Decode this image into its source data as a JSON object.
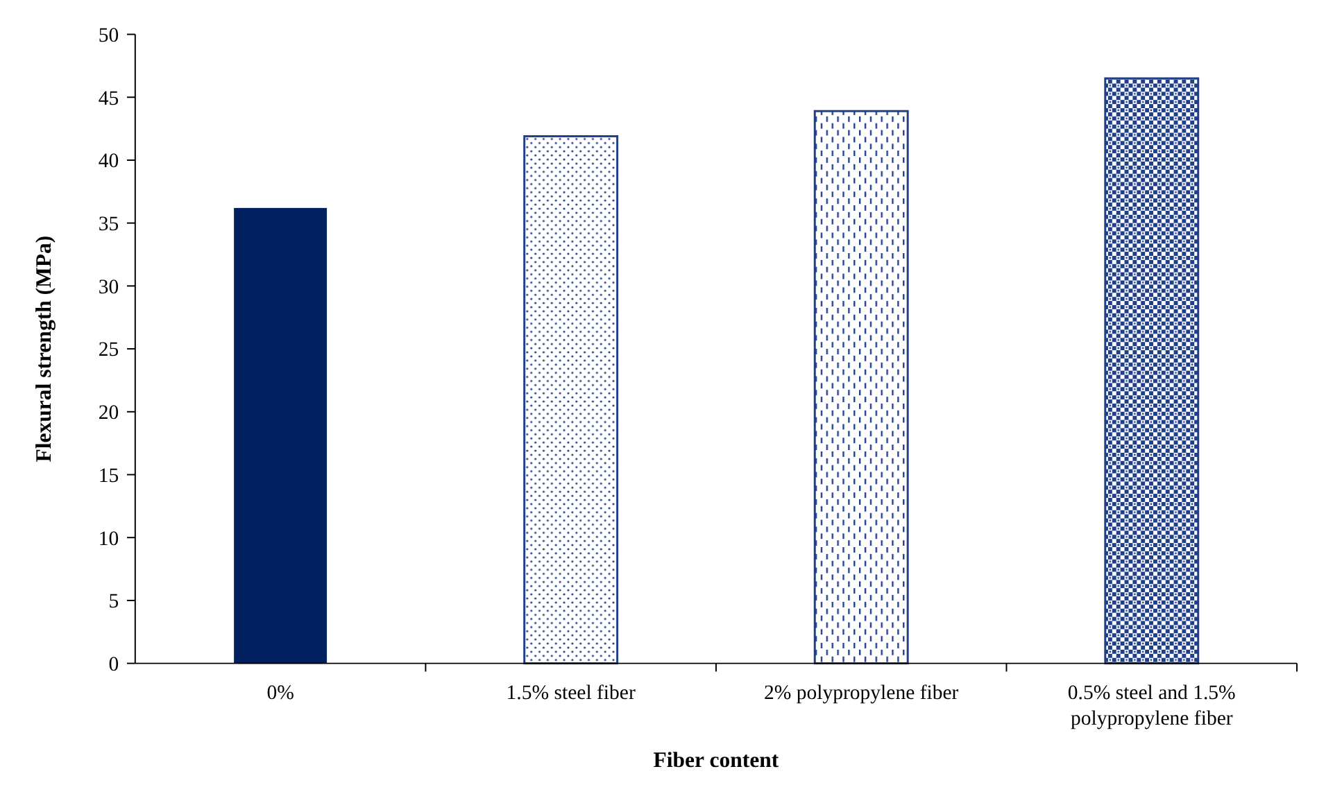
{
  "chart_data": {
    "type": "bar",
    "xlabel": "Fiber content",
    "ylabel": "Flexural strength (MPa)",
    "categories": [
      "0%",
      "1.5% steel fiber",
      "2% polypropylene fiber",
      "0.5% steel and 1.5% polypropylene fiber"
    ],
    "values": [
      36.2,
      41.9,
      43.9,
      46.5
    ],
    "colors": [
      "#002060",
      "#1f3f8a",
      "#1f3f8a",
      "#1f3f8a"
    ],
    "ylim": [
      0,
      50
    ],
    "yticks": [
      0,
      5,
      10,
      15,
      20,
      25,
      30,
      35,
      40,
      45,
      50
    ],
    "grid": false
  }
}
